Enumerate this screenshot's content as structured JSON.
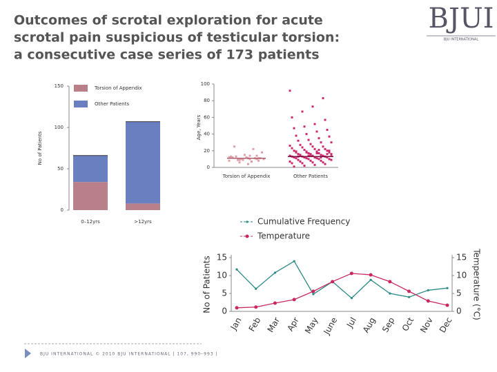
{
  "header": {
    "title_lines": [
      "Outcomes of scrotal exploration for acute",
      "scrotal pain suspicious of testicular torsion:",
      "a consecutive case series of 173 patients"
    ],
    "logo": "BJUI",
    "logo_sub": "BJU INTERNATIONAL"
  },
  "footer": "BJU INTERNATIONAL © 2010 BJU INTERNATIONAL | 107, 990–993 |",
  "chart_data": [
    {
      "type": "stacked_bar",
      "y_label": "No of Patients",
      "categories": [
        "0–12yrs",
        ">12yrs"
      ],
      "series": [
        {
          "name": "Torsion of Appendix",
          "color": "#b98089",
          "values": [
            34,
            8
          ]
        },
        {
          "name": "Other Patients",
          "color": "#6a7fc0",
          "values": [
            32,
            99
          ]
        }
      ],
      "ylim": [
        0,
        150
      ],
      "yticks": [
        0,
        50,
        100,
        150
      ]
    },
    {
      "type": "strip",
      "y_label": "Age, Years",
      "categories": [
        "Torsion of Appendix",
        "Other Patients"
      ],
      "series": [
        {
          "name": "Torsion of Appendix",
          "color": "#e0a0a8",
          "values": [
            12,
            10,
            11,
            9,
            13,
            8,
            14,
            10,
            12,
            11,
            7,
            9,
            25,
            18,
            22,
            15,
            13,
            10,
            11,
            12,
            9,
            8,
            14,
            4,
            6,
            12,
            11,
            10
          ]
        },
        {
          "name": "Other Patients",
          "color": "#cc2a6e",
          "values": [
            92,
            83,
            73,
            67,
            60,
            57,
            52,
            49,
            47,
            45,
            43,
            40,
            38,
            37,
            35,
            33,
            32,
            30,
            30,
            28,
            27,
            26,
            25,
            25,
            24,
            23,
            22,
            22,
            21,
            20,
            20,
            19,
            19,
            18,
            18,
            17,
            17,
            16,
            16,
            15,
            15,
            15,
            14,
            14,
            14,
            13,
            13,
            13,
            12,
            12,
            12,
            12,
            11,
            11,
            11,
            10,
            10,
            10,
            9,
            9,
            8,
            8,
            7,
            7,
            6,
            6,
            5,
            5,
            4,
            3,
            2,
            1,
            16,
            17,
            18,
            19,
            20,
            21,
            14,
            13,
            15,
            12,
            16,
            14
          ]
        }
      ],
      "medians": [
        11,
        13
      ],
      "ylim": [
        0,
        100
      ],
      "yticks": [
        0,
        20,
        40,
        60,
        80,
        100
      ]
    },
    {
      "type": "line",
      "y_label": "No of Patients",
      "y2_label": "Temperature (°C)",
      "categories": [
        "Jan",
        "Feb",
        "Mar",
        "Apr",
        "May",
        "June",
        "Jul",
        "Aug",
        "Sep",
        "Oct",
        "Nov",
        "Dec"
      ],
      "series": [
        {
          "name": "Cumulative Frequency",
          "color": "#2a8a86",
          "values": [
            11.7,
            6.3,
            10.8,
            14,
            4.8,
            8.3,
            3.7,
            8.8,
            5,
            4,
            5.9,
            6.5
          ]
        },
        {
          "name": "Temperature",
          "color": "#c8285e",
          "axis": "y2",
          "values": [
            1,
            1.2,
            2.3,
            3.3,
            5.6,
            8.3,
            10.6,
            10.2,
            8.3,
            5.6,
            2.9,
            1.7
          ]
        }
      ],
      "ylim": [
        0,
        15
      ],
      "yticks": [
        0,
        5,
        10,
        15
      ],
      "y2lim": [
        0,
        15
      ],
      "y2ticks": [
        0,
        5,
        10,
        15
      ]
    }
  ]
}
